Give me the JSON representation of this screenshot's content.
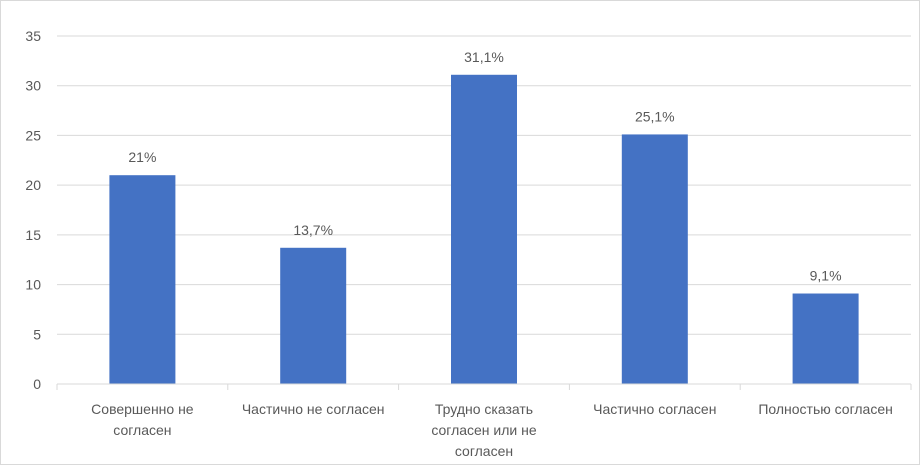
{
  "chart_data": {
    "type": "bar",
    "categories": [
      [
        "Совершенно не",
        "согласен"
      ],
      [
        "Частично не согласен"
      ],
      [
        "Трудно сказать",
        "согласен или не",
        "согласен"
      ],
      [
        "Частично согласен"
      ],
      [
        "Полностью согласен"
      ]
    ],
    "values": [
      21,
      13.7,
      31.1,
      25.1,
      9.1
    ],
    "data_labels": [
      "21%",
      "13,7%",
      "31,1%",
      "25,1%",
      "9,1%"
    ],
    "ylim": [
      0,
      35
    ],
    "yticks": [
      0,
      5,
      10,
      15,
      20,
      25,
      30,
      35
    ],
    "grid": true,
    "bar_color": "#4472C4",
    "grid_color": "#d9d9d9",
    "text_color": "#595959",
    "title": "",
    "xlabel": "",
    "ylabel": ""
  }
}
